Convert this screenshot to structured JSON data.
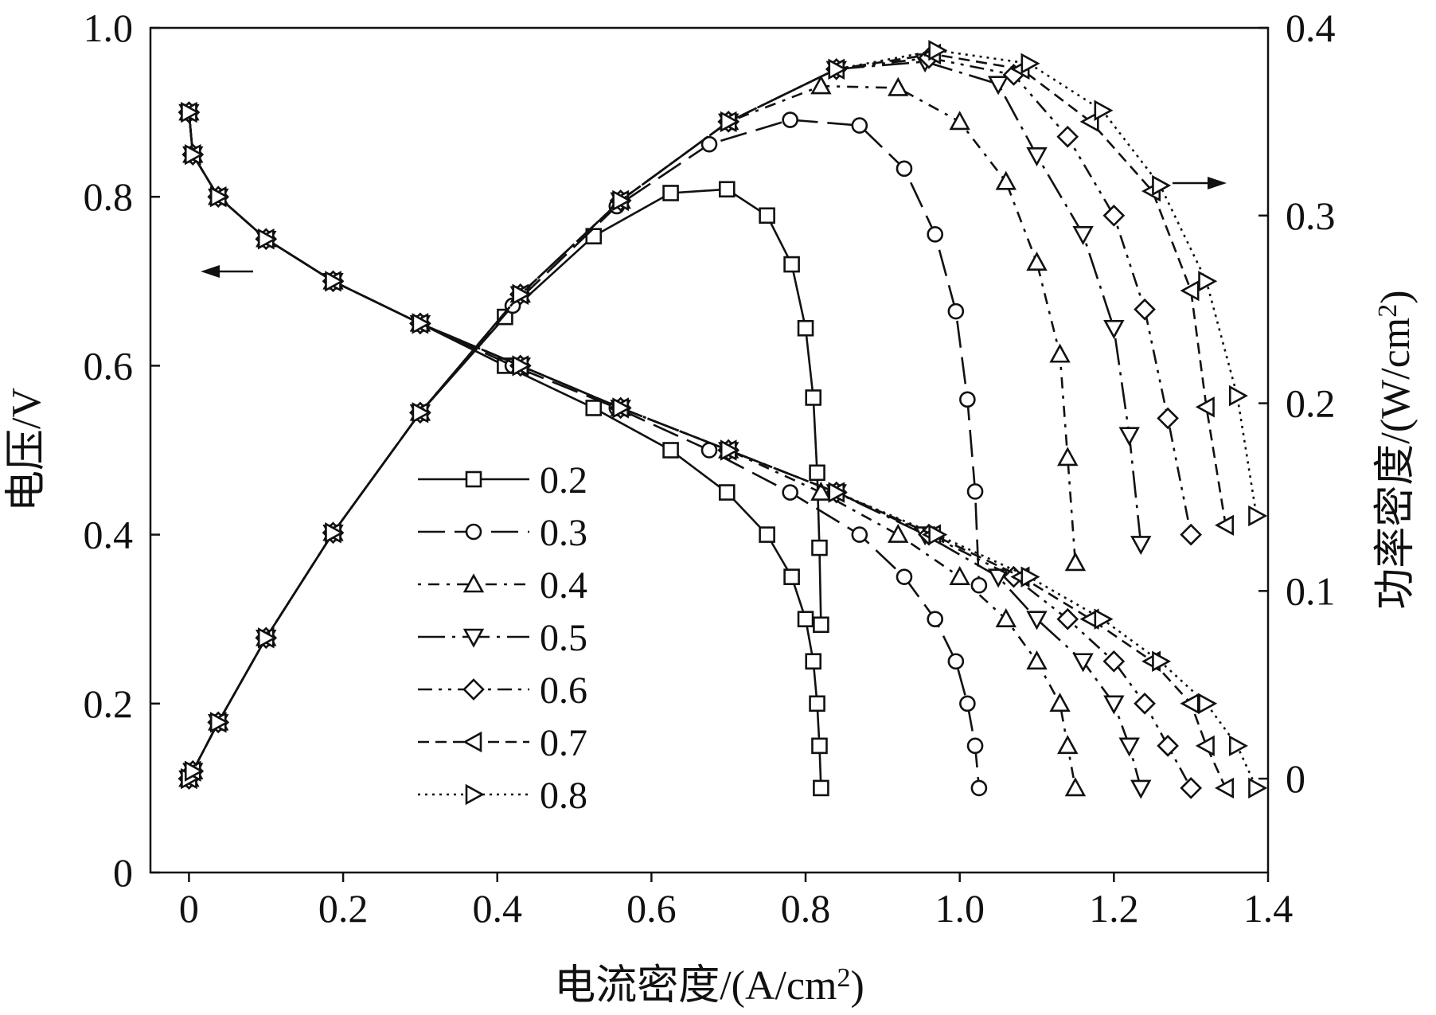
{
  "chart_data": {
    "type": "line",
    "xlabel": "电流密度/(A/cm2)",
    "xlabel_main": "电流密度/(A/cm",
    "xlabel_sup": "2",
    "xlabel_close": ")",
    "ylabel_left": "电压/V",
    "ylabel_right": "功率密度/(W/cm2)",
    "ylabel_right_main": "功率密度/(W/cm",
    "ylabel_right_sup": "2",
    "ylabel_right_close": ")",
    "xlim": [
      -0.05,
      1.4
    ],
    "ylim_left": [
      0,
      1.0
    ],
    "ylim_right": [
      -0.05,
      0.4
    ],
    "x_ticks": [
      "0",
      "0.2",
      "0.4",
      "0.6",
      "0.8",
      "1.0",
      "1.2",
      "1.4"
    ],
    "y_left_ticks": [
      "0",
      "0.2",
      "0.4",
      "0.6",
      "0.8",
      "1.0"
    ],
    "y_right_ticks": [
      "0",
      "0.1",
      "0.2",
      "0.3",
      "0.4"
    ],
    "arrow_left_label": "←",
    "arrow_right_label": "→",
    "legend": [
      "0.2",
      "0.3",
      "0.4",
      "0.5",
      "0.6",
      "0.7",
      "0.8"
    ],
    "series": [
      {
        "name": "0.2",
        "marker": "square",
        "dash": "none",
        "polarization": [
          [
            0,
            0.9
          ],
          [
            0.005,
            0.85
          ],
          [
            0.038,
            0.8
          ],
          [
            0.1,
            0.75
          ],
          [
            0.187,
            0.7
          ],
          [
            0.3,
            0.65
          ],
          [
            0.41,
            0.6
          ],
          [
            0.525,
            0.55
          ],
          [
            0.625,
            0.5
          ],
          [
            0.698,
            0.45
          ],
          [
            0.75,
            0.4
          ],
          [
            0.782,
            0.35
          ],
          [
            0.8,
            0.3
          ],
          [
            0.81,
            0.25
          ],
          [
            0.815,
            0.2
          ],
          [
            0.818,
            0.15
          ],
          [
            0.82,
            0.1
          ]
        ],
        "power": [
          [
            0,
            0.0
          ],
          [
            0.005,
            0.004
          ],
          [
            0.038,
            0.03
          ],
          [
            0.1,
            0.075
          ],
          [
            0.187,
            0.131
          ],
          [
            0.3,
            0.195
          ],
          [
            0.41,
            0.246
          ],
          [
            0.525,
            0.289
          ],
          [
            0.625,
            0.312
          ],
          [
            0.698,
            0.314
          ],
          [
            0.75,
            0.3
          ],
          [
            0.782,
            0.274
          ],
          [
            0.8,
            0.24
          ],
          [
            0.81,
            0.203
          ],
          [
            0.815,
            0.163
          ],
          [
            0.818,
            0.123
          ],
          [
            0.82,
            0.082
          ]
        ]
      },
      {
        "name": "0.3",
        "marker": "circle",
        "dash": "long-dash",
        "polarization": [
          [
            0,
            0.9
          ],
          [
            0.005,
            0.85
          ],
          [
            0.038,
            0.8
          ],
          [
            0.1,
            0.75
          ],
          [
            0.187,
            0.7
          ],
          [
            0.3,
            0.65
          ],
          [
            0.42,
            0.6
          ],
          [
            0.555,
            0.55
          ],
          [
            0.675,
            0.5
          ],
          [
            0.78,
            0.45
          ],
          [
            0.87,
            0.4
          ],
          [
            0.928,
            0.35
          ],
          [
            0.968,
            0.3
          ],
          [
            0.995,
            0.25
          ],
          [
            1.01,
            0.2
          ],
          [
            1.02,
            0.15
          ],
          [
            1.025,
            0.1
          ]
        ],
        "power": [
          [
            0,
            0.0
          ],
          [
            0.005,
            0.004
          ],
          [
            0.038,
            0.03
          ],
          [
            0.1,
            0.075
          ],
          [
            0.187,
            0.131
          ],
          [
            0.3,
            0.195
          ],
          [
            0.42,
            0.252
          ],
          [
            0.555,
            0.305
          ],
          [
            0.675,
            0.338
          ],
          [
            0.78,
            0.351
          ],
          [
            0.87,
            0.348
          ],
          [
            0.928,
            0.325
          ],
          [
            0.968,
            0.29
          ],
          [
            0.995,
            0.249
          ],
          [
            1.01,
            0.202
          ],
          [
            1.02,
            0.153
          ],
          [
            1.025,
            0.103
          ]
        ]
      },
      {
        "name": "0.4",
        "marker": "triangle-up",
        "dash": "dot-dash",
        "polarization": [
          [
            0,
            0.9
          ],
          [
            0.005,
            0.85
          ],
          [
            0.038,
            0.8
          ],
          [
            0.1,
            0.75
          ],
          [
            0.187,
            0.7
          ],
          [
            0.3,
            0.65
          ],
          [
            0.43,
            0.6
          ],
          [
            0.56,
            0.55
          ],
          [
            0.7,
            0.5
          ],
          [
            0.82,
            0.45
          ],
          [
            0.92,
            0.4
          ],
          [
            1.0,
            0.35
          ],
          [
            1.06,
            0.3
          ],
          [
            1.1,
            0.25
          ],
          [
            1.13,
            0.2
          ],
          [
            1.14,
            0.15
          ],
          [
            1.15,
            0.1
          ]
        ],
        "power": [
          [
            0,
            0.0
          ],
          [
            0.005,
            0.004
          ],
          [
            0.038,
            0.03
          ],
          [
            0.1,
            0.075
          ],
          [
            0.187,
            0.131
          ],
          [
            0.3,
            0.195
          ],
          [
            0.43,
            0.258
          ],
          [
            0.56,
            0.308
          ],
          [
            0.7,
            0.35
          ],
          [
            0.82,
            0.369
          ],
          [
            0.92,
            0.368
          ],
          [
            1.0,
            0.35
          ],
          [
            1.06,
            0.318
          ],
          [
            1.1,
            0.275
          ],
          [
            1.13,
            0.226
          ],
          [
            1.14,
            0.171
          ],
          [
            1.15,
            0.115
          ]
        ]
      },
      {
        "name": "0.5",
        "marker": "triangle-down",
        "dash": "long-dot-dash",
        "polarization": [
          [
            0,
            0.9
          ],
          [
            0.005,
            0.85
          ],
          [
            0.038,
            0.8
          ],
          [
            0.1,
            0.75
          ],
          [
            0.187,
            0.7
          ],
          [
            0.3,
            0.65
          ],
          [
            0.43,
            0.6
          ],
          [
            0.56,
            0.55
          ],
          [
            0.7,
            0.5
          ],
          [
            0.84,
            0.45
          ],
          [
            0.955,
            0.4
          ],
          [
            1.05,
            0.35
          ],
          [
            1.1,
            0.3
          ],
          [
            1.16,
            0.25
          ],
          [
            1.2,
            0.2
          ],
          [
            1.22,
            0.15
          ],
          [
            1.235,
            0.1
          ]
        ],
        "power": [
          [
            0,
            0.0
          ],
          [
            0.005,
            0.004
          ],
          [
            0.038,
            0.03
          ],
          [
            0.1,
            0.075
          ],
          [
            0.187,
            0.131
          ],
          [
            0.3,
            0.195
          ],
          [
            0.43,
            0.258
          ],
          [
            0.56,
            0.308
          ],
          [
            0.7,
            0.35
          ],
          [
            0.84,
            0.378
          ],
          [
            0.955,
            0.382
          ],
          [
            1.05,
            0.37
          ],
          [
            1.1,
            0.332
          ],
          [
            1.16,
            0.29
          ],
          [
            1.2,
            0.24
          ],
          [
            1.22,
            0.183
          ],
          [
            1.235,
            0.125
          ]
        ]
      },
      {
        "name": "0.6",
        "marker": "diamond",
        "dash": "dash-dot-dot",
        "polarization": [
          [
            0,
            0.9
          ],
          [
            0.005,
            0.85
          ],
          [
            0.038,
            0.8
          ],
          [
            0.1,
            0.75
          ],
          [
            0.187,
            0.7
          ],
          [
            0.3,
            0.65
          ],
          [
            0.43,
            0.6
          ],
          [
            0.56,
            0.55
          ],
          [
            0.7,
            0.5
          ],
          [
            0.84,
            0.45
          ],
          [
            0.96,
            0.4
          ],
          [
            1.07,
            0.35
          ],
          [
            1.14,
            0.3
          ],
          [
            1.2,
            0.25
          ],
          [
            1.24,
            0.2
          ],
          [
            1.27,
            0.15
          ],
          [
            1.3,
            0.1
          ]
        ],
        "power": [
          [
            0,
            0.0
          ],
          [
            0.005,
            0.004
          ],
          [
            0.038,
            0.03
          ],
          [
            0.1,
            0.075
          ],
          [
            0.187,
            0.131
          ],
          [
            0.3,
            0.195
          ],
          [
            0.43,
            0.258
          ],
          [
            0.56,
            0.308
          ],
          [
            0.7,
            0.35
          ],
          [
            0.84,
            0.378
          ],
          [
            0.96,
            0.384
          ],
          [
            1.07,
            0.375
          ],
          [
            1.14,
            0.342
          ],
          [
            1.2,
            0.3
          ],
          [
            1.24,
            0.25
          ],
          [
            1.27,
            0.192
          ],
          [
            1.3,
            0.13
          ]
        ]
      },
      {
        "name": "0.7",
        "marker": "triangle-left",
        "dash": "short-dash",
        "polarization": [
          [
            0,
            0.9
          ],
          [
            0.005,
            0.85
          ],
          [
            0.038,
            0.8
          ],
          [
            0.1,
            0.75
          ],
          [
            0.187,
            0.7
          ],
          [
            0.3,
            0.65
          ],
          [
            0.43,
            0.6
          ],
          [
            0.56,
            0.55
          ],
          [
            0.7,
            0.5
          ],
          [
            0.84,
            0.45
          ],
          [
            0.965,
            0.4
          ],
          [
            1.08,
            0.35
          ],
          [
            1.17,
            0.3
          ],
          [
            1.25,
            0.25
          ],
          [
            1.3,
            0.2
          ],
          [
            1.32,
            0.15
          ],
          [
            1.345,
            0.1
          ]
        ],
        "power": [
          [
            0,
            0.0
          ],
          [
            0.005,
            0.004
          ],
          [
            0.038,
            0.03
          ],
          [
            0.1,
            0.075
          ],
          [
            0.187,
            0.131
          ],
          [
            0.3,
            0.195
          ],
          [
            0.43,
            0.258
          ],
          [
            0.56,
            0.308
          ],
          [
            0.7,
            0.35
          ],
          [
            0.84,
            0.378
          ],
          [
            0.965,
            0.386
          ],
          [
            1.08,
            0.378
          ],
          [
            1.17,
            0.35
          ],
          [
            1.25,
            0.313
          ],
          [
            1.3,
            0.26
          ],
          [
            1.32,
            0.198
          ],
          [
            1.345,
            0.135
          ]
        ]
      },
      {
        "name": "0.8",
        "marker": "triangle-right",
        "dash": "dotted",
        "polarization": [
          [
            0,
            0.9
          ],
          [
            0.005,
            0.85
          ],
          [
            0.038,
            0.8
          ],
          [
            0.1,
            0.75
          ],
          [
            0.187,
            0.7
          ],
          [
            0.3,
            0.65
          ],
          [
            0.43,
            0.6
          ],
          [
            0.56,
            0.55
          ],
          [
            0.7,
            0.5
          ],
          [
            0.84,
            0.45
          ],
          [
            0.97,
            0.4
          ],
          [
            1.09,
            0.35
          ],
          [
            1.185,
            0.3
          ],
          [
            1.26,
            0.25
          ],
          [
            1.32,
            0.2
          ],
          [
            1.36,
            0.15
          ],
          [
            1.385,
            0.1
          ]
        ],
        "power": [
          [
            0,
            0.0
          ],
          [
            0.005,
            0.004
          ],
          [
            0.038,
            0.03
          ],
          [
            0.1,
            0.075
          ],
          [
            0.187,
            0.131
          ],
          [
            0.3,
            0.195
          ],
          [
            0.43,
            0.258
          ],
          [
            0.56,
            0.308
          ],
          [
            0.7,
            0.35
          ],
          [
            0.84,
            0.378
          ],
          [
            0.97,
            0.388
          ],
          [
            1.09,
            0.381
          ],
          [
            1.185,
            0.356
          ],
          [
            1.26,
            0.316
          ],
          [
            1.32,
            0.265
          ],
          [
            1.36,
            0.204
          ],
          [
            1.385,
            0.14
          ]
        ]
      }
    ]
  }
}
